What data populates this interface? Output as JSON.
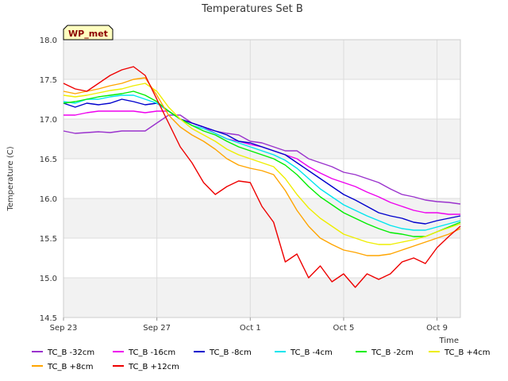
{
  "chart_data": {
    "type": "line",
    "title": "Temperatures Set B",
    "xlabel": "Time",
    "ylabel": "Temperature (C)",
    "badge": "WP_met",
    "x_start": "Sep 23",
    "x_end": "Oct 10",
    "xlim": [
      0,
      17
    ],
    "ylim": [
      14.5,
      18.0
    ],
    "y_ticks": [
      "14.5",
      "15.0",
      "15.5",
      "16.0",
      "16.5",
      "17.0",
      "17.5",
      "18.0"
    ],
    "y_tick_values": [
      14.5,
      15.0,
      15.5,
      16.0,
      16.5,
      17.0,
      17.5,
      18.0
    ],
    "x_ticks": [
      "Sep 23",
      "Sep 27",
      "Oct 1",
      "Oct 5",
      "Oct 9"
    ],
    "x_tick_values": [
      0,
      4,
      8,
      12,
      16
    ],
    "grid": true,
    "legend_position": "bottom",
    "series": [
      {
        "name": "TC_B -32cm",
        "color": "#9a32cd",
        "x": [
          0,
          0.5,
          1,
          1.5,
          2,
          2.5,
          3,
          3.5,
          4,
          4.5,
          5,
          5.5,
          6,
          6.5,
          7,
          7.5,
          8,
          8.5,
          9,
          9.5,
          10,
          10.5,
          11,
          11.5,
          12,
          12.5,
          13,
          13.5,
          14,
          14.5,
          15,
          15.5,
          16,
          16.5,
          17
        ],
        "y": [
          16.85,
          16.82,
          16.83,
          16.84,
          16.83,
          16.85,
          16.85,
          16.85,
          16.95,
          17.05,
          17.05,
          16.95,
          16.9,
          16.85,
          16.82,
          16.8,
          16.72,
          16.7,
          16.65,
          16.6,
          16.6,
          16.5,
          16.45,
          16.4,
          16.33,
          16.3,
          16.25,
          16.2,
          16.12,
          16.05,
          16.02,
          15.98,
          15.96,
          15.95,
          15.93
        ]
      },
      {
        "name": "TC_B -16cm",
        "color": "#ee00ee",
        "x": [
          0,
          0.5,
          1,
          1.5,
          2,
          2.5,
          3,
          3.5,
          4,
          4.5,
          5,
          5.5,
          6,
          6.5,
          7,
          7.5,
          8,
          8.5,
          9,
          9.5,
          10,
          10.5,
          11,
          11.5,
          12,
          12.5,
          13,
          13.5,
          14,
          14.5,
          15,
          15.5,
          16,
          16.5,
          17
        ],
        "y": [
          17.05,
          17.05,
          17.08,
          17.1,
          17.1,
          17.1,
          17.1,
          17.08,
          17.1,
          17.1,
          17.0,
          16.95,
          16.9,
          16.82,
          16.75,
          16.72,
          16.68,
          16.65,
          16.6,
          16.55,
          16.5,
          16.4,
          16.32,
          16.25,
          16.2,
          16.15,
          16.08,
          16.02,
          15.95,
          15.9,
          15.85,
          15.82,
          15.82,
          15.8,
          15.8
        ]
      },
      {
        "name": "TC_B -8cm",
        "color": "#0000cd",
        "x": [
          0,
          0.5,
          1,
          1.5,
          2,
          2.5,
          3,
          3.5,
          4,
          4.5,
          5,
          5.5,
          6,
          6.5,
          7,
          7.5,
          8,
          8.5,
          9,
          9.5,
          10,
          10.5,
          11,
          11.5,
          12,
          12.5,
          13,
          13.5,
          14,
          14.5,
          15,
          15.5,
          16,
          16.5,
          17
        ],
        "y": [
          17.2,
          17.15,
          17.2,
          17.18,
          17.2,
          17.25,
          17.22,
          17.18,
          17.2,
          17.1,
          17.0,
          16.95,
          16.9,
          16.85,
          16.8,
          16.72,
          16.7,
          16.65,
          16.6,
          16.55,
          16.45,
          16.35,
          16.25,
          16.15,
          16.05,
          15.98,
          15.9,
          15.82,
          15.78,
          15.75,
          15.7,
          15.68,
          15.72,
          15.75,
          15.78
        ]
      },
      {
        "name": "TC_B -4cm",
        "color": "#00e5ee",
        "x": [
          0,
          0.5,
          1,
          1.5,
          2,
          2.5,
          3,
          3.5,
          4,
          4.5,
          5,
          5.5,
          6,
          6.5,
          7,
          7.5,
          8,
          8.5,
          9,
          9.5,
          10,
          10.5,
          11,
          11.5,
          12,
          12.5,
          13,
          13.5,
          14,
          14.5,
          15,
          15.5,
          16,
          16.5,
          17
        ],
        "y": [
          17.22,
          17.2,
          17.25,
          17.25,
          17.28,
          17.3,
          17.3,
          17.25,
          17.2,
          17.1,
          17.0,
          16.92,
          16.88,
          16.82,
          16.75,
          16.7,
          16.65,
          16.6,
          16.55,
          16.48,
          16.38,
          16.25,
          16.12,
          16.02,
          15.92,
          15.85,
          15.78,
          15.72,
          15.66,
          15.62,
          15.6,
          15.6,
          15.64,
          15.68,
          15.72
        ]
      },
      {
        "name": "TC_B -2cm",
        "color": "#00ee00",
        "x": [
          0,
          0.5,
          1,
          1.5,
          2,
          2.5,
          3,
          3.5,
          4,
          4.5,
          5,
          5.5,
          6,
          6.5,
          7,
          7.5,
          8,
          8.5,
          9,
          9.5,
          10,
          10.5,
          11,
          11.5,
          12,
          12.5,
          13,
          13.5,
          14,
          14.5,
          15,
          15.5,
          16,
          16.5,
          17
        ],
        "y": [
          17.2,
          17.22,
          17.25,
          17.28,
          17.3,
          17.32,
          17.35,
          17.3,
          17.22,
          17.1,
          17.0,
          16.92,
          16.85,
          16.8,
          16.72,
          16.65,
          16.6,
          16.55,
          16.5,
          16.42,
          16.3,
          16.15,
          16.02,
          15.92,
          15.82,
          15.75,
          15.68,
          15.62,
          15.57,
          15.55,
          15.52,
          15.52,
          15.58,
          15.64,
          15.7
        ]
      },
      {
        "name": "TC_B +4cm",
        "color": "#eeee00",
        "x": [
          0,
          0.5,
          1,
          1.5,
          2,
          2.5,
          3,
          3.5,
          4,
          4.5,
          5,
          5.5,
          6,
          6.5,
          7,
          7.5,
          8,
          8.5,
          9,
          9.5,
          10,
          10.5,
          11,
          11.5,
          12,
          12.5,
          13,
          13.5,
          14,
          14.5,
          15,
          15.5,
          16,
          16.5,
          17
        ],
        "y": [
          17.3,
          17.28,
          17.3,
          17.33,
          17.36,
          17.38,
          17.42,
          17.45,
          17.35,
          17.15,
          17.0,
          16.88,
          16.8,
          16.72,
          16.62,
          16.55,
          16.5,
          16.45,
          16.4,
          16.25,
          16.05,
          15.88,
          15.75,
          15.65,
          15.55,
          15.5,
          15.45,
          15.42,
          15.42,
          15.45,
          15.48,
          15.52,
          15.58,
          15.63,
          15.68
        ]
      },
      {
        "name": "TC_B +8cm",
        "color": "#ffa500",
        "x": [
          0,
          0.5,
          1,
          1.5,
          2,
          2.5,
          3,
          3.5,
          4,
          4.5,
          5,
          5.5,
          6,
          6.5,
          7,
          7.5,
          8,
          8.5,
          9,
          9.5,
          10,
          10.5,
          11,
          11.5,
          12,
          12.5,
          13,
          13.5,
          14,
          14.5,
          15,
          15.5,
          16,
          16.5,
          17
        ],
        "y": [
          17.35,
          17.32,
          17.35,
          17.38,
          17.42,
          17.45,
          17.5,
          17.52,
          17.3,
          17.05,
          16.9,
          16.8,
          16.72,
          16.62,
          16.5,
          16.42,
          16.38,
          16.35,
          16.3,
          16.1,
          15.85,
          15.65,
          15.5,
          15.42,
          15.35,
          15.32,
          15.28,
          15.28,
          15.3,
          15.35,
          15.4,
          15.45,
          15.5,
          15.55,
          15.62
        ]
      },
      {
        "name": "TC_B +12cm",
        "color": "#ee0000",
        "x": [
          0,
          0.5,
          1,
          1.5,
          2,
          2.5,
          3,
          3.5,
          4,
          4.5,
          5,
          5.5,
          6,
          6.5,
          7,
          7.5,
          8,
          8.5,
          9,
          9.5,
          10,
          10.5,
          11,
          11.5,
          12,
          12.5,
          13,
          13.5,
          14,
          14.5,
          15,
          15.5,
          16,
          16.5,
          17
        ],
        "y": [
          17.45,
          17.38,
          17.35,
          17.45,
          17.55,
          17.62,
          17.66,
          17.55,
          17.25,
          16.95,
          16.65,
          16.45,
          16.2,
          16.05,
          16.15,
          16.22,
          16.2,
          15.9,
          15.7,
          15.2,
          15.3,
          15.0,
          15.15,
          14.95,
          15.05,
          14.88,
          15.05,
          14.98,
          15.05,
          15.2,
          15.25,
          15.18,
          15.38,
          15.52,
          15.65
        ]
      }
    ]
  }
}
